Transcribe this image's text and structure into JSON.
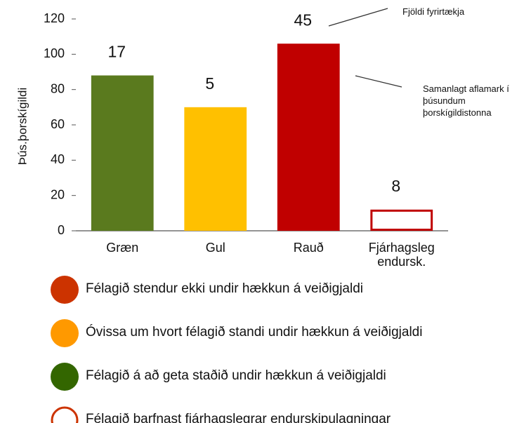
{
  "chart_data": {
    "type": "bar",
    "y_label": "Þús.þorskígildi",
    "categories": [
      "Græn",
      "Gul",
      "Rauð",
      "Fjárhagsleg endursk."
    ],
    "values": [
      88,
      70,
      106,
      12
    ],
    "colors": [
      "#5a7a1e",
      "#ffc000",
      "#c00000",
      "#ffffff"
    ],
    "edge_colors": [
      "#5a7a1e",
      "#ffc000",
      "#c00000",
      "#c00000"
    ],
    "value_labels": [
      "17",
      "5",
      "45",
      "8"
    ],
    "ylim": [
      0,
      120
    ],
    "yticks": [
      0,
      20,
      40,
      60,
      80,
      100,
      120
    ],
    "grid": false,
    "annotations": [
      "Fjöldi fyrirtækja",
      "Samanlagt aflamark í þúsundum þorskígildistonna"
    ],
    "legend": [
      {
        "label": "Félagið stendur ekki undir hækkun á veiðigjaldi",
        "color": "#cc3300",
        "style": "filled"
      },
      {
        "label": "Óvissa um hvort félagið standi undir hækkun á veiðigjaldi",
        "color": "#ff9900",
        "style": "filled"
      },
      {
        "label": "Félagið á að geta staðið undir hækkun á veiðigjaldi",
        "color": "#336600",
        "style": "filled"
      },
      {
        "label": "Félagið þarfnast fjárhagslegrar endurskipulagningar",
        "color": "#cc3300",
        "style": "ring"
      }
    ]
  }
}
